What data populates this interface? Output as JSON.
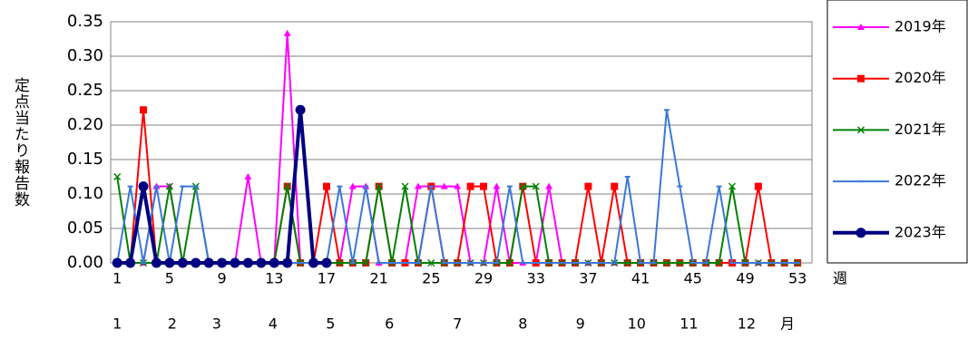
{
  "chart_data": {
    "type": "line",
    "y_label": "定点当たり報告数",
    "x_label": "週",
    "month_label": "月",
    "x": [
      1,
      2,
      3,
      4,
      5,
      6,
      7,
      8,
      9,
      10,
      11,
      12,
      13,
      14,
      15,
      16,
      17,
      18,
      19,
      20,
      21,
      22,
      23,
      24,
      25,
      26,
      27,
      28,
      29,
      30,
      31,
      32,
      33,
      34,
      35,
      36,
      37,
      38,
      39,
      40,
      41,
      42,
      43,
      44,
      45,
      46,
      47,
      48,
      49,
      50,
      51,
      52,
      53
    ],
    "xlim": [
      0.5,
      54.1
    ],
    "xticks": [
      1,
      5,
      9,
      13,
      17,
      21,
      25,
      29,
      33,
      37,
      41,
      45,
      49,
      53
    ],
    "month_ticks": [
      1,
      {
        "value": 5.2,
        "label": "2"
      },
      {
        "value": 8.6,
        "label": "3"
      },
      {
        "value": 12.9,
        "label": "4"
      },
      {
        "value": 17.3,
        "label": "5"
      },
      {
        "value": 21.8,
        "label": "6"
      },
      {
        "value": 27,
        "label": "7"
      },
      {
        "value": 32,
        "label": "8"
      },
      {
        "value": 36.4,
        "label": "9"
      },
      {
        "value": 40.7,
        "label": "10"
      },
      {
        "value": 44.7,
        "label": "11"
      },
      {
        "value": 49.1,
        "label": "12"
      }
    ],
    "ylim": [
      0,
      0.35
    ],
    "yticks": [
      {
        "value": 0,
        "label": "0.00"
      },
      {
        "value": 0.05,
        "label": "0.05"
      },
      {
        "value": 0.1,
        "label": "0.10"
      },
      {
        "value": 0.15,
        "label": "0.15"
      },
      {
        "value": 0.2,
        "label": "0.20"
      },
      {
        "value": 0.25,
        "label": "0.25"
      },
      {
        "value": 0.3,
        "label": "0.30"
      },
      {
        "value": 0.35,
        "label": "0.35"
      }
    ],
    "grid": true,
    "legend": "right",
    "series": [
      {
        "name": "2019年",
        "color": "#ff00ff",
        "marker": "triangle",
        "width": 2,
        "values": [
          0,
          0,
          0,
          0.111,
          0.111,
          0,
          0,
          0,
          0,
          0,
          0.125,
          0,
          0,
          0.333,
          0,
          0,
          0,
          0,
          0.111,
          0.111,
          0,
          0,
          0,
          0.111,
          0.111,
          0.111,
          0.111,
          0,
          0,
          0.111,
          0,
          0,
          0,
          0.111,
          0,
          0,
          0,
          0,
          0,
          0,
          0,
          0,
          0,
          0,
          0,
          0,
          0,
          0,
          0,
          0,
          0,
          0,
          0
        ]
      },
      {
        "name": "2020年",
        "color": "#ff0000",
        "marker": "square",
        "width": 2,
        "values": [
          0,
          0,
          0.222,
          0,
          0,
          0,
          0,
          0,
          0,
          0,
          0,
          0,
          0,
          0.111,
          0,
          0,
          0.111,
          0,
          0,
          0,
          0.111,
          0,
          0,
          0,
          0.111,
          0,
          0,
          0.111,
          0.111,
          0,
          0,
          0.111,
          0,
          0,
          0,
          0,
          0.111,
          0,
          0.111,
          0,
          0,
          0,
          0,
          0,
          0,
          0,
          0,
          0,
          0,
          0.111,
          0,
          0,
          0
        ]
      },
      {
        "name": "2021年",
        "color": "#008000",
        "marker": "cross",
        "width": 2,
        "values": [
          0.125,
          0,
          0,
          0,
          0.111,
          0,
          0.111,
          0,
          0,
          0,
          0,
          0,
          0,
          0.111,
          0,
          0,
          0,
          0,
          0,
          0,
          0.111,
          0,
          0.111,
          0,
          0,
          0,
          0,
          0,
          0,
          0,
          0,
          0.111,
          0.111,
          0,
          0,
          0,
          0,
          0,
          0,
          0,
          0,
          0,
          0,
          0,
          0,
          0,
          0,
          0.111,
          0,
          0,
          0,
          0,
          0
        ]
      },
      {
        "name": "2022年",
        "color": "#3a78d8",
        "marker": "dash",
        "width": 2,
        "values": [
          0,
          0.111,
          0,
          0.111,
          0,
          0.111,
          0.111,
          0,
          0,
          0,
          0,
          0,
          0,
          0,
          0,
          0,
          0,
          0.111,
          0,
          0.111,
          0,
          0,
          0,
          0,
          0.111,
          0,
          0,
          0,
          0,
          0,
          0.111,
          0,
          0,
          0,
          0,
          0,
          0,
          0,
          0,
          0.125,
          0,
          0,
          0.222,
          0.111,
          0,
          0,
          0.111,
          0,
          0,
          0,
          0,
          0,
          0
        ]
      },
      {
        "name": "2023年",
        "color": "#000080",
        "marker": "circle",
        "width": 4,
        "values": [
          0,
          0,
          0.111,
          0,
          0,
          0,
          0,
          0,
          0,
          0,
          0,
          0,
          0,
          0,
          0.222,
          0,
          0,
          null,
          null,
          null,
          null,
          null,
          null,
          null,
          null,
          null,
          null,
          null,
          null,
          null,
          null,
          null,
          null,
          null,
          null,
          null,
          null,
          null,
          null,
          null,
          null,
          null,
          null,
          null,
          null,
          null,
          null,
          null,
          null,
          null,
          null,
          null,
          null
        ]
      }
    ]
  }
}
